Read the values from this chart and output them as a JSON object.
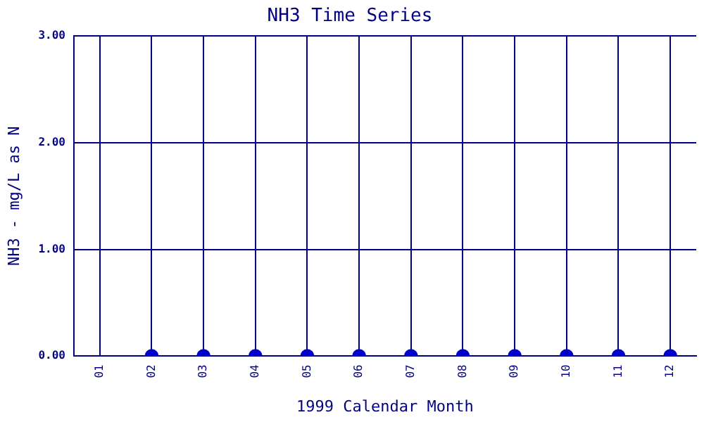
{
  "chart_data": {
    "type": "scatter",
    "title": "NH3 Time Series",
    "xlabel": "1999 Calendar Month",
    "ylabel": "NH3 - mg/L as N",
    "categories": [
      "01",
      "02",
      "03",
      "04",
      "05",
      "06",
      "07",
      "08",
      "09",
      "10",
      "11",
      "12"
    ],
    "series": [
      {
        "color": "#0000cc",
        "values": [
          null,
          0,
          0,
          0,
          0,
          0,
          0,
          0,
          0,
          0,
          0,
          0
        ]
      }
    ],
    "ylim": [
      0,
      3
    ],
    "yticks": [
      {
        "value": 0,
        "label": "0.00"
      },
      {
        "value": 1,
        "label": "1.00"
      },
      {
        "value": 2,
        "label": "2.00"
      },
      {
        "value": 3,
        "label": "3.00"
      }
    ],
    "grid": true,
    "marker": "circle",
    "legend": false
  }
}
